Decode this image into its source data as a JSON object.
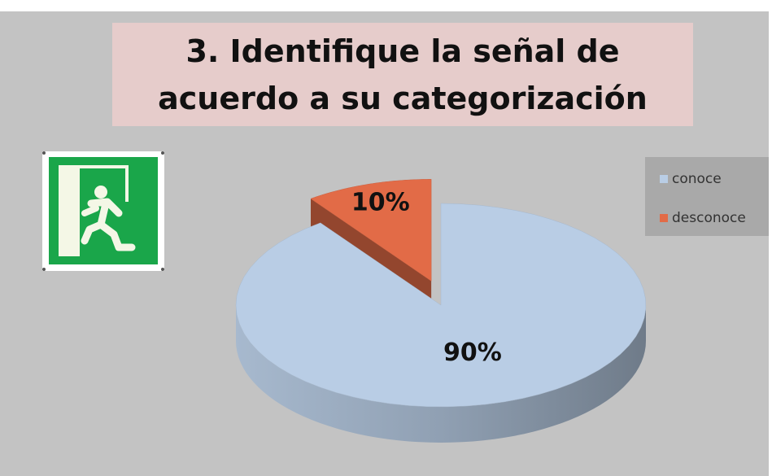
{
  "chart_data": {
    "type": "pie",
    "title": "3. Identifique la señal de acuerdo a su categorización",
    "categories": [
      "conoce",
      "desconoce"
    ],
    "values": [
      90,
      10
    ],
    "value_labels": [
      "90%",
      "10%"
    ],
    "colors": [
      "#b9cde5",
      "#e26b47"
    ],
    "explode": [
      false,
      true
    ],
    "legend": "right"
  }
}
